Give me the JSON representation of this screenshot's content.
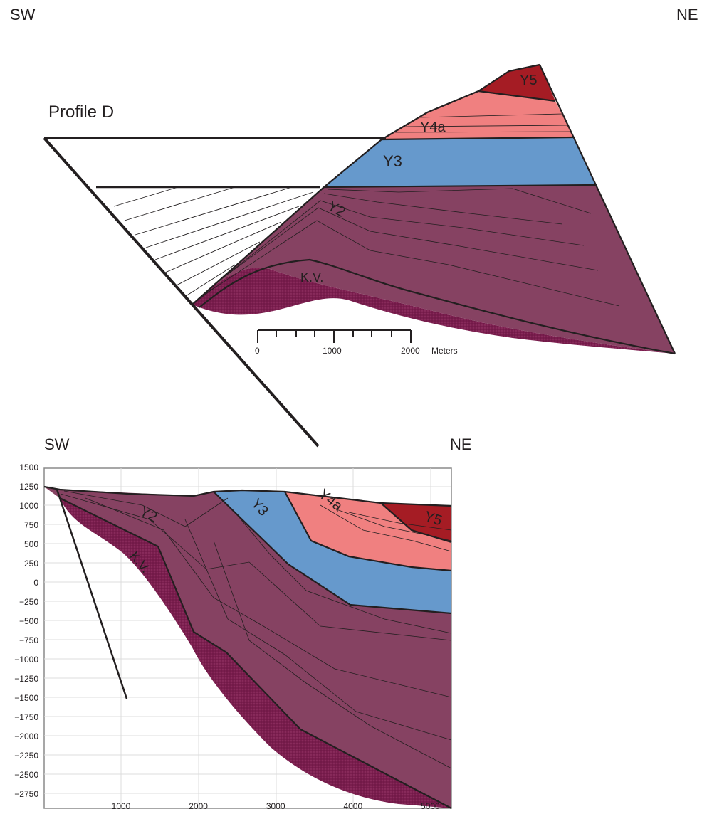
{
  "top_section": {
    "sw_label": "SW",
    "ne_label": "NE",
    "title": "Profile D",
    "units": {
      "Y5": "Y5",
      "Y4a": "Y4a",
      "Y3": "Y3",
      "Y2": "Y2",
      "KV": "K.V."
    },
    "scale_bar": {
      "ticks": [
        "0",
        "1000",
        "2000"
      ],
      "unit": "Meters"
    }
  },
  "bottom_section": {
    "sw_label": "SW",
    "ne_label": "NE",
    "units": {
      "Y5": "Y5",
      "Y4a": "Y4a",
      "Y3": "Y3",
      "Y2": "Y2",
      "KV": "K.V."
    },
    "y_ticks": [
      "1500",
      "1250",
      "1000",
      "750",
      "500",
      "250",
      "0",
      "−250",
      "−500",
      "−750",
      "−1000",
      "−1250",
      "−1500",
      "−1750",
      "−2000",
      "−2250",
      "−2500",
      "−2750"
    ],
    "x_ticks": [
      "1000",
      "2000",
      "3000",
      "4000",
      "5000"
    ]
  },
  "colors": {
    "Y5": "#a51c24",
    "Y4a": "#f08080",
    "Y3": "#6699cc",
    "Y2": "#864262",
    "KV": "#7a1e4e"
  }
}
